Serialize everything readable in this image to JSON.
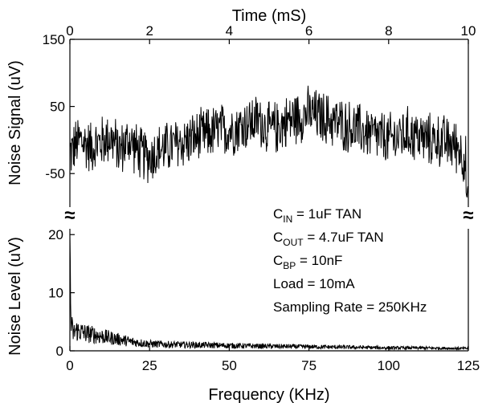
{
  "chart_data": [
    {
      "type": "line",
      "panel": "top",
      "xlabel": "Time (mS)",
      "ylabel": "Noise Signal (uV)",
      "x_axis_position": "top",
      "xlim": [
        0,
        10
      ],
      "ylim": [
        -100,
        150
      ],
      "x_ticks": [
        "0",
        "2",
        "4",
        "6",
        "8",
        "10"
      ],
      "y_ticks": [
        "150",
        "50",
        "-50"
      ],
      "y_tick_values": [
        150,
        50,
        -50
      ],
      "grid": false,
      "series": [
        {
          "color": "#000000",
          "x": [
            0,
            0.25,
            0.5,
            0.75,
            1.0,
            1.25,
            1.5,
            1.75,
            2.0,
            2.25,
            2.5,
            2.75,
            3.0,
            3.25,
            3.5,
            3.75,
            4.0,
            4.25,
            4.5,
            4.75,
            5.0,
            5.25,
            5.5,
            5.75,
            6.0,
            6.25,
            6.5,
            6.75,
            7.0,
            7.25,
            7.5,
            7.75,
            8.0,
            8.25,
            8.5,
            8.75,
            9.0,
            9.25,
            9.5,
            9.75,
            10.0
          ],
          "values": [
            -20,
            0,
            -10,
            -5,
            5,
            -15,
            0,
            -20,
            -25,
            -15,
            -10,
            -5,
            0,
            5,
            10,
            15,
            15,
            20,
            25,
            30,
            15,
            20,
            30,
            35,
            40,
            35,
            30,
            25,
            20,
            15,
            10,
            5,
            0,
            5,
            10,
            5,
            0,
            0,
            -5,
            -10,
            -40
          ],
          "noise_amplitude": 45
        }
      ]
    },
    {
      "type": "line",
      "panel": "bottom",
      "xlabel": "Frequency (KHz)",
      "ylabel": "Noise Level (uV)",
      "xlim": [
        0,
        125
      ],
      "ylim": [
        0,
        21
      ],
      "x_ticks": [
        "0",
        "25",
        "50",
        "75",
        "100",
        "125"
      ],
      "y_ticks": [
        "20",
        "10",
        "0"
      ],
      "y_tick_values": [
        20,
        10,
        0
      ],
      "grid": false,
      "series": [
        {
          "color": "#000000",
          "x": [
            0,
            0.3,
            1,
            2,
            5,
            10,
            15,
            20,
            25,
            30,
            40,
            50,
            60,
            75,
            90,
            100,
            110,
            125
          ],
          "values": [
            20,
            5,
            3,
            3.5,
            3,
            2.5,
            2,
            1.5,
            1.2,
            1.1,
            1.0,
            0.9,
            0.8,
            0.7,
            0.6,
            0.5,
            0.5,
            0.4
          ],
          "noise_amplitude_fraction": 0.55
        }
      ]
    }
  ],
  "annotations": [
    {
      "main": "C",
      "sub": "IN",
      "rest": " = 1uF TAN"
    },
    {
      "main": "C",
      "sub": "OUT",
      "rest": " = 4.7uF TAN"
    },
    {
      "main": "C",
      "sub": "BP",
      "rest": " = 10nF"
    },
    {
      "main": "Load = 10mA",
      "sub": "",
      "rest": ""
    },
    {
      "main": "Sampling Rate = 250KHz",
      "sub": "",
      "rest": ""
    }
  ],
  "break_marks": [
    "≈",
    "≈"
  ]
}
